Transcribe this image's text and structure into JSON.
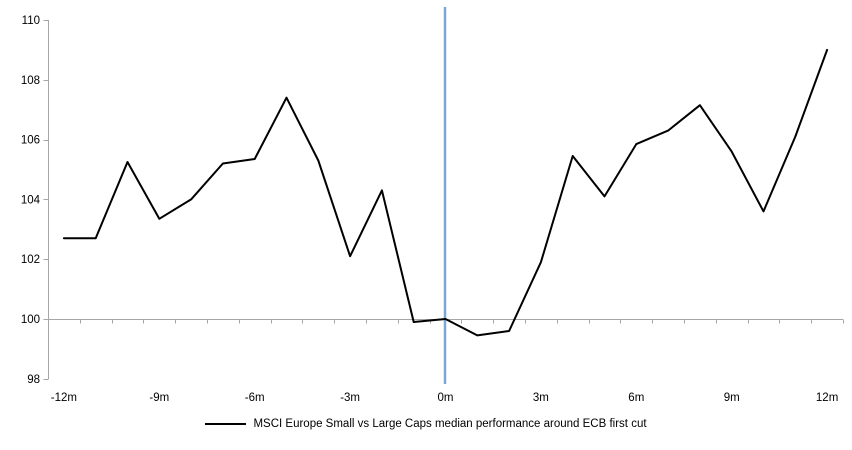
{
  "chart_data": {
    "type": "line",
    "title": "",
    "xlabel": "",
    "ylabel": "",
    "x": [
      -12,
      -11,
      -10,
      -9,
      -8,
      -7,
      -6,
      -5,
      -4,
      -3,
      -2,
      -1,
      0,
      1,
      2,
      3,
      4,
      5,
      6,
      7,
      8,
      9,
      10,
      11,
      12
    ],
    "series": [
      {
        "name": "MSCI Europe Small vs Large Caps median performance around ECB first cut",
        "color": "#000000",
        "values": [
          102.7,
          102.7,
          105.25,
          103.35,
          104.0,
          105.2,
          105.35,
          107.4,
          105.3,
          102.1,
          104.3,
          99.9,
          100.0,
          99.45,
          99.6,
          101.9,
          105.45,
          104.1,
          105.85,
          106.3,
          107.15,
          105.6,
          103.6,
          106.1,
          109.0
        ]
      }
    ],
    "ylim": [
      98,
      110
    ],
    "ytick_interval": 2,
    "ytick_labels": [
      "98",
      "100",
      "102",
      "104",
      "106",
      "108",
      "110"
    ],
    "xticks": {
      "values": [
        -12,
        -9,
        -6,
        -3,
        0,
        3,
        6,
        9,
        12
      ],
      "labels": [
        "-12m",
        "-9m",
        "-6m",
        "-3m",
        "0m",
        "3m",
        "6m",
        "9m",
        "12m"
      ]
    },
    "axis_crosses_at": 100,
    "event_line_x": 0,
    "grid": "off",
    "legend_position": "bottom"
  },
  "colors": {
    "series_line": "#000000",
    "event_line": "#7BA7D0",
    "axis": "#A6A6A6",
    "label_text": "#000000",
    "background": "#FFFFFF"
  },
  "legend": {
    "label": "MSCI Europe Small vs Large Caps median performance around ECB first cut"
  }
}
